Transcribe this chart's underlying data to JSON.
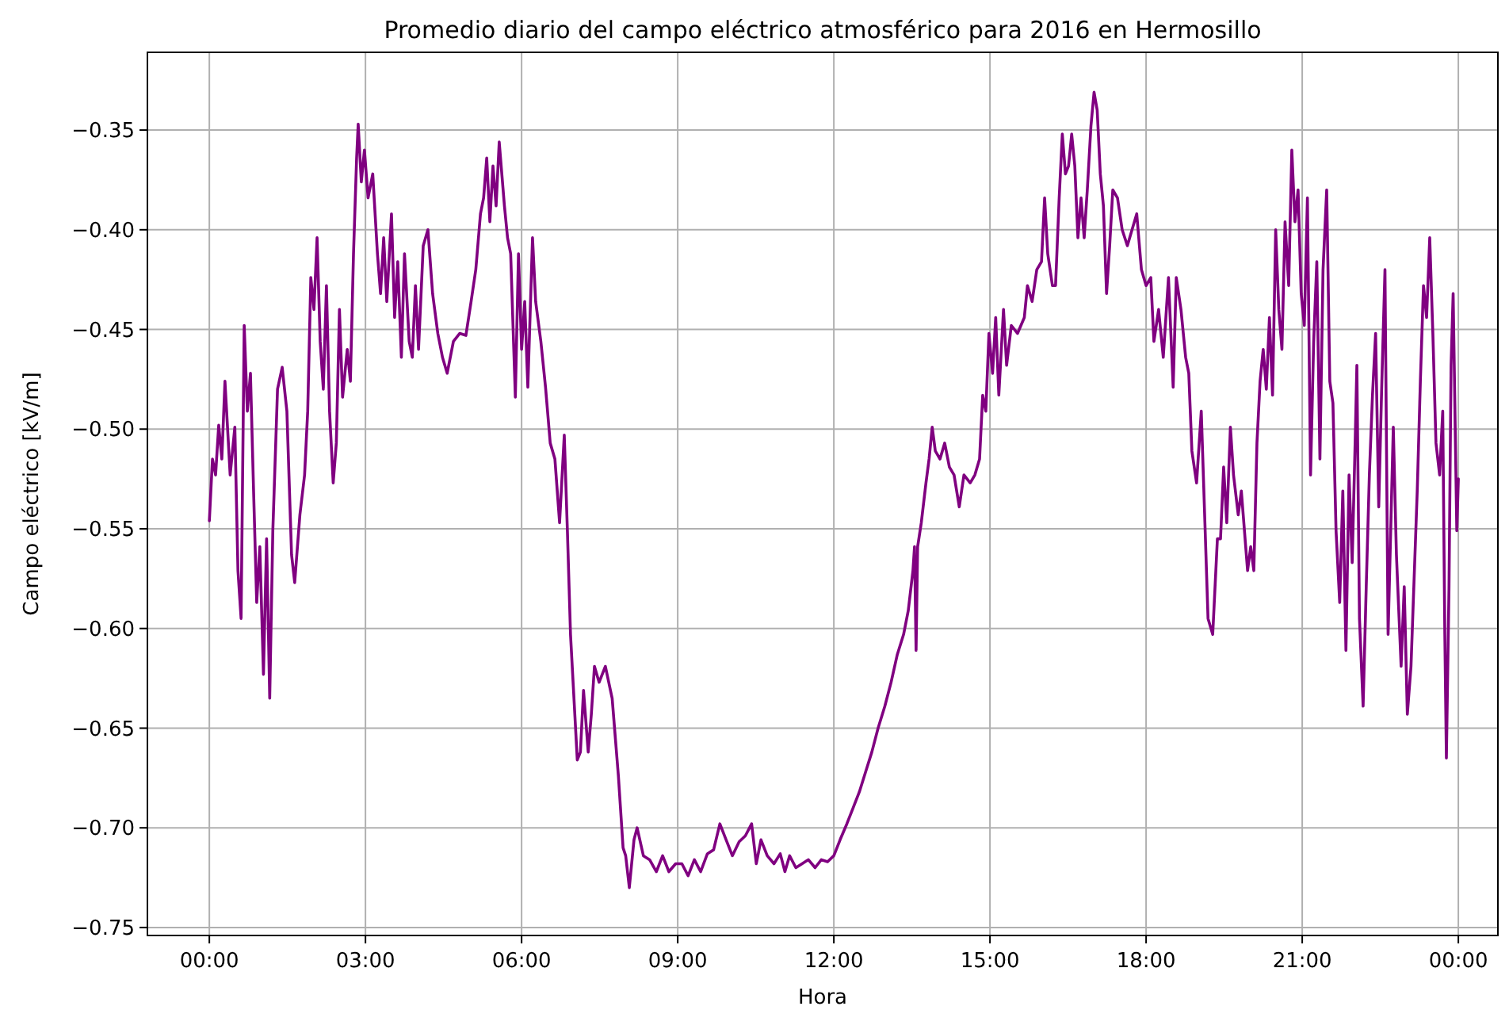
{
  "chart_data": {
    "type": "line",
    "title": "Promedio diario del campo eléctrico atmosférico para 2016 en Hermosillo",
    "xlabel": "Hora",
    "ylabel": "Campo eléctrico [kV/m]",
    "xlim": [
      -1.19,
      24.76
    ],
    "ylim": [
      -0.754,
      -0.311
    ],
    "xticks": [
      {
        "value": 0,
        "label": "00:00"
      },
      {
        "value": 3,
        "label": "03:00"
      },
      {
        "value": 6,
        "label": "06:00"
      },
      {
        "value": 9,
        "label": "09:00"
      },
      {
        "value": 12,
        "label": "12:00"
      },
      {
        "value": 15,
        "label": "15:00"
      },
      {
        "value": 18,
        "label": "18:00"
      },
      {
        "value": 21,
        "label": "21:00"
      },
      {
        "value": 24,
        "label": "00:00"
      }
    ],
    "yticks": [
      {
        "value": -0.75,
        "label": "−0.75"
      },
      {
        "value": -0.7,
        "label": "−0.70"
      },
      {
        "value": -0.65,
        "label": "−0.65"
      },
      {
        "value": -0.6,
        "label": "−0.60"
      },
      {
        "value": -0.55,
        "label": "−0.55"
      },
      {
        "value": -0.5,
        "label": "−0.50"
      },
      {
        "value": -0.45,
        "label": "−0.45"
      },
      {
        "value": -0.4,
        "label": "−0.40"
      },
      {
        "value": -0.35,
        "label": "−0.35"
      }
    ],
    "grid": true,
    "line_style": "solid",
    "marker": "none",
    "series": [
      {
        "color": "#800080",
        "x": [
          0,
          0.06,
          0.12,
          0.18,
          0.24,
          0.3,
          0.4,
          0.49,
          0.55,
          0.61,
          0.67,
          0.73,
          0.79,
          0.85,
          0.91,
          0.97,
          1.04,
          1.1,
          1.16,
          1.22,
          1.31,
          1.4,
          1.49,
          1.58,
          1.64,
          1.74,
          1.83,
          1.89,
          1.95,
          2.01,
          2.07,
          2.13,
          2.19,
          2.25,
          2.31,
          2.38,
          2.44,
          2.5,
          2.56,
          2.65,
          2.71,
          2.77,
          2.83,
          2.86,
          2.92,
          2.98,
          3.05,
          3.14,
          3.23,
          3.29,
          3.35,
          3.41,
          3.5,
          3.56,
          3.62,
          3.69,
          3.75,
          3.84,
          3.9,
          3.96,
          4.02,
          4.11,
          4.2,
          4.29,
          4.39,
          4.48,
          4.57,
          4.69,
          4.81,
          4.93,
          5.03,
          5.12,
          5.21,
          5.27,
          5.33,
          5.39,
          5.45,
          5.51,
          5.57,
          5.67,
          5.73,
          5.79,
          5.88,
          5.94,
          6,
          6.06,
          6.12,
          6.21,
          6.27,
          6.37,
          6.46,
          6.55,
          6.64,
          6.73,
          6.82,
          6.88,
          6.94,
          7.07,
          7.13,
          7.19,
          7.28,
          7.34,
          7.4,
          7.49,
          7.61,
          7.74,
          7.86,
          7.95,
          8,
          8.07,
          8.16,
          8.22,
          8.34,
          8.46,
          8.59,
          8.71,
          8.83,
          8.96,
          9.08,
          9.2,
          9.32,
          9.44,
          9.57,
          9.69,
          9.81,
          9.93,
          10.05,
          10.18,
          10.3,
          10.42,
          10.51,
          10.6,
          10.72,
          10.85,
          10.97,
          11.06,
          11.15,
          11.27,
          11.39,
          11.51,
          11.64,
          11.76,
          11.88,
          12,
          12.12,
          12.25,
          12.37,
          12.49,
          12.61,
          12.73,
          12.85,
          12.98,
          13.1,
          13.22,
          13.34,
          13.43,
          13.52,
          13.55,
          13.58,
          13.61,
          13.68,
          13.77,
          13.83,
          13.89,
          13.95,
          14.04,
          14.13,
          14.22,
          14.31,
          14.41,
          14.5,
          14.62,
          14.71,
          14.8,
          14.86,
          14.92,
          14.98,
          15.05,
          15.11,
          15.17,
          15.26,
          15.32,
          15.41,
          15.53,
          15.66,
          15.72,
          15.81,
          15.9,
          15.99,
          16.05,
          16.11,
          16.2,
          16.26,
          16.33,
          16.39,
          16.45,
          16.51,
          16.57,
          16.63,
          16.69,
          16.75,
          16.81,
          16.87,
          16.94,
          17,
          17.06,
          17.12,
          17.18,
          17.24,
          17.3,
          17.36,
          17.45,
          17.54,
          17.64,
          17.73,
          17.82,
          17.91,
          18,
          18.09,
          18.15,
          18.24,
          18.33,
          18.43,
          18.52,
          18.58,
          18.67,
          18.76,
          18.82,
          18.88,
          18.97,
          19.06,
          19.13,
          19.19,
          19.28,
          19.37,
          19.43,
          19.49,
          19.55,
          19.62,
          19.68,
          19.77,
          19.83,
          19.89,
          19.95,
          20.01,
          20.07,
          20.13,
          20.19,
          20.25,
          20.31,
          20.37,
          20.43,
          20.49,
          20.55,
          20.61,
          20.67,
          20.74,
          20.8,
          20.86,
          20.92,
          20.98,
          21.04,
          21.1,
          21.16,
          21.22,
          21.28,
          21.34,
          21.4,
          21.47,
          21.53,
          21.59,
          21.65,
          21.72,
          21.78,
          21.84,
          21.9,
          21.96,
          22.02,
          22.05,
          22.1,
          22.17,
          22.23,
          22.29,
          22.35,
          22.41,
          22.47,
          22.53,
          22.59,
          22.65,
          22.75,
          22.81,
          22.9,
          22.96,
          23.02,
          23.09,
          23.15,
          23.21,
          23.27,
          23.33,
          23.39,
          23.45,
          23.51,
          23.57,
          23.64,
          23.7,
          23.74,
          23.77,
          23.82,
          23.86,
          23.9,
          23.94,
          23.97,
          24
        ],
        "values": [
          -0.546,
          -0.515,
          -0.523,
          -0.498,
          -0.515,
          -0.476,
          -0.523,
          -0.499,
          -0.571,
          -0.595,
          -0.448,
          -0.491,
          -0.472,
          -0.531,
          -0.587,
          -0.559,
          -0.623,
          -0.555,
          -0.635,
          -0.551,
          -0.48,
          -0.469,
          -0.491,
          -0.563,
          -0.577,
          -0.543,
          -0.523,
          -0.491,
          -0.424,
          -0.44,
          -0.404,
          -0.456,
          -0.48,
          -0.428,
          -0.491,
          -0.527,
          -0.507,
          -0.44,
          -0.484,
          -0.46,
          -0.476,
          -0.412,
          -0.364,
          -0.347,
          -0.376,
          -0.36,
          -0.384,
          -0.372,
          -0.412,
          -0.432,
          -0.404,
          -0.436,
          -0.392,
          -0.444,
          -0.416,
          -0.464,
          -0.412,
          -0.456,
          -0.464,
          -0.428,
          -0.46,
          -0.408,
          -0.4,
          -0.432,
          -0.452,
          -0.464,
          -0.472,
          -0.456,
          -0.452,
          -0.453,
          -0.436,
          -0.42,
          -0.392,
          -0.384,
          -0.364,
          -0.396,
          -0.368,
          -0.388,
          -0.356,
          -0.388,
          -0.404,
          -0.412,
          -0.484,
          -0.412,
          -0.46,
          -0.436,
          -0.479,
          -0.404,
          -0.436,
          -0.456,
          -0.479,
          -0.507,
          -0.515,
          -0.547,
          -0.503,
          -0.551,
          -0.603,
          -0.666,
          -0.662,
          -0.631,
          -0.662,
          -0.643,
          -0.619,
          -0.627,
          -0.619,
          -0.635,
          -0.674,
          -0.71,
          -0.714,
          -0.73,
          -0.706,
          -0.7,
          -0.714,
          -0.716,
          -0.722,
          -0.714,
          -0.722,
          -0.718,
          -0.718,
          -0.724,
          -0.716,
          -0.722,
          -0.713,
          -0.711,
          -0.698,
          -0.706,
          -0.714,
          -0.707,
          -0.704,
          -0.698,
          -0.718,
          -0.706,
          -0.714,
          -0.718,
          -0.713,
          -0.722,
          -0.714,
          -0.72,
          -0.718,
          -0.716,
          -0.72,
          -0.716,
          -0.717,
          -0.714,
          -0.706,
          -0.698,
          -0.69,
          -0.682,
          -0.672,
          -0.662,
          -0.65,
          -0.639,
          -0.627,
          -0.613,
          -0.603,
          -0.591,
          -0.571,
          -0.559,
          -0.611,
          -0.559,
          -0.547,
          -0.527,
          -0.515,
          -0.499,
          -0.511,
          -0.515,
          -0.507,
          -0.519,
          -0.523,
          -0.539,
          -0.523,
          -0.527,
          -0.523,
          -0.515,
          -0.483,
          -0.491,
          -0.452,
          -0.472,
          -0.444,
          -0.483,
          -0.44,
          -0.468,
          -0.448,
          -0.452,
          -0.444,
          -0.428,
          -0.436,
          -0.42,
          -0.416,
          -0.384,
          -0.412,
          -0.428,
          -0.428,
          -0.384,
          -0.352,
          -0.372,
          -0.368,
          -0.352,
          -0.368,
          -0.404,
          -0.384,
          -0.404,
          -0.38,
          -0.348,
          -0.331,
          -0.34,
          -0.372,
          -0.388,
          -0.432,
          -0.408,
          -0.38,
          -0.384,
          -0.4,
          -0.408,
          -0.4,
          -0.392,
          -0.42,
          -0.428,
          -0.424,
          -0.456,
          -0.44,
          -0.464,
          -0.424,
          -0.479,
          -0.424,
          -0.44,
          -0.464,
          -0.472,
          -0.511,
          -0.527,
          -0.491,
          -0.547,
          -0.595,
          -0.603,
          -0.555,
          -0.555,
          -0.519,
          -0.547,
          -0.499,
          -0.523,
          -0.543,
          -0.531,
          -0.551,
          -0.571,
          -0.559,
          -0.571,
          -0.507,
          -0.476,
          -0.46,
          -0.48,
          -0.444,
          -0.483,
          -0.4,
          -0.44,
          -0.46,
          -0.396,
          -0.428,
          -0.36,
          -0.396,
          -0.38,
          -0.432,
          -0.448,
          -0.384,
          -0.523,
          -0.456,
          -0.416,
          -0.515,
          -0.42,
          -0.38,
          -0.476,
          -0.487,
          -0.551,
          -0.587,
          -0.531,
          -0.611,
          -0.523,
          -0.567,
          -0.503,
          -0.468,
          -0.595,
          -0.639,
          -0.579,
          -0.523,
          -0.483,
          -0.452,
          -0.539,
          -0.476,
          -0.42,
          -0.603,
          -0.499,
          -0.563,
          -0.619,
          -0.579,
          -0.643,
          -0.619,
          -0.575,
          -0.531,
          -0.476,
          -0.428,
          -0.444,
          -0.404,
          -0.452,
          -0.507,
          -0.523,
          -0.491,
          -0.603,
          -0.665,
          -0.58,
          -0.468,
          -0.432,
          -0.5,
          -0.551,
          -0.525
        ]
      }
    ]
  }
}
